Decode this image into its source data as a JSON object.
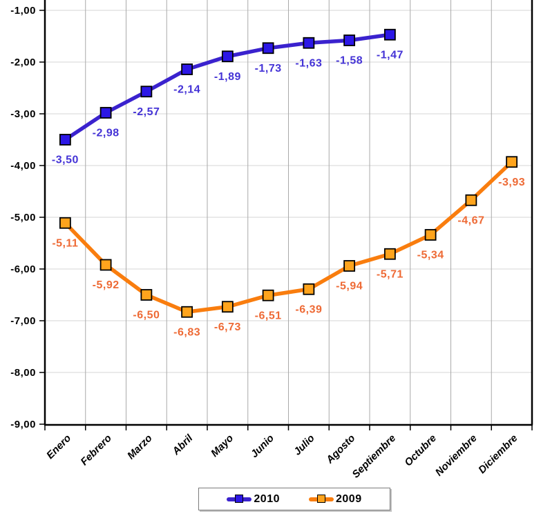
{
  "chart_data": {
    "type": "line",
    "title": "",
    "categories": [
      "Enero",
      "Febrero",
      "Marzo",
      "Abril",
      "Mayo",
      "Junio",
      "Julio",
      "Agosto",
      "Septiembre",
      "Octubre",
      "Noviembre",
      "Diciembre"
    ],
    "series": [
      {
        "name": "2010",
        "color": "#3A22CE",
        "marker_fill": "#2C17E6",
        "label_color": "#4433D6",
        "values": [
          -3.5,
          -2.98,
          -2.57,
          -2.14,
          -1.89,
          -1.73,
          -1.63,
          -1.58,
          -1.47
        ],
        "point_labels": [
          "-3,50",
          "-2,98",
          "-2,57",
          "-2,14",
          "-1,89",
          "-1,73",
          "-1,63",
          "-1,58",
          "-1,47"
        ]
      },
      {
        "name": "2009",
        "color": "#F97D0E",
        "marker_fill": "#FFA41D",
        "label_color": "#EE6A35",
        "values": [
          -5.11,
          -5.92,
          -6.5,
          -6.83,
          -6.73,
          -6.51,
          -6.39,
          -5.94,
          -5.71,
          -5.34,
          -4.67,
          -3.93
        ],
        "point_labels": [
          "-5,11",
          "-5,92",
          "-6,50",
          "-6,83",
          "-6,73",
          "-6,51",
          "-6,39",
          "-5,94",
          "-5,71",
          "-5,34",
          "-4,67",
          "-3,93"
        ]
      }
    ],
    "ylim": [
      -9,
      -1
    ],
    "ytick_values": [
      -1,
      -2,
      -3,
      -4,
      -5,
      -6,
      -7,
      -8,
      -9
    ],
    "ytick_labels": [
      "-1,00",
      "-2,00",
      "-3,00",
      "-4,00",
      "-5,00",
      "-6,00",
      "-7,00",
      "-8,00",
      "-9,00"
    ],
    "grid": true,
    "legend_position": "bottom",
    "axis_color": "#000000",
    "h_grid_color": "#D6D6D6",
    "v_grid_color": "#A9A9A9"
  }
}
